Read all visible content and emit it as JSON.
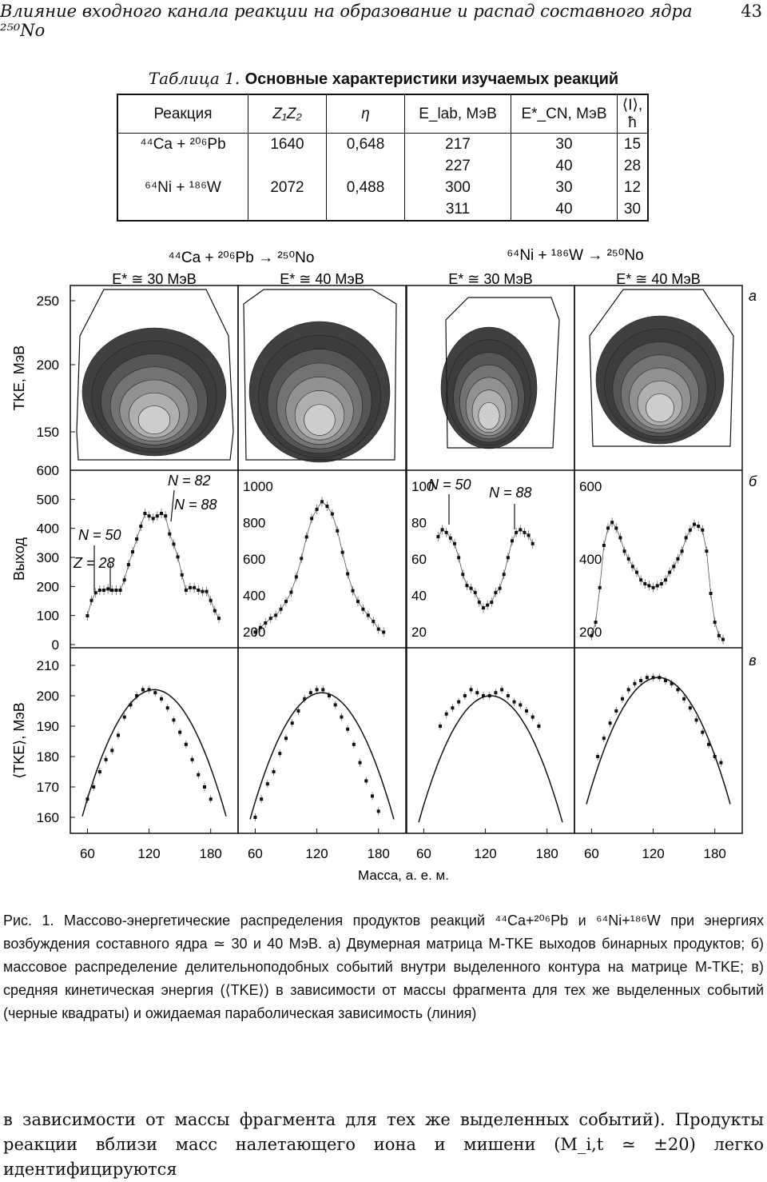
{
  "header": {
    "running_title": "Влияние входного канала реакции на образование и распад составного ядра ²⁵⁰No",
    "page_number": "43"
  },
  "table": {
    "label": "Таблица 1.",
    "title": "Основные характеристики изучаемых реакций",
    "columns": [
      "Реакция",
      "Z₁Z₂",
      "η",
      "E_lab, МэВ",
      "E*_CN, МэВ",
      "⟨I⟩, ħ"
    ],
    "rows": [
      {
        "reaction": "⁴⁴Ca + ²⁰⁶Pb",
        "z1z2": "1640",
        "eta": "0,648",
        "elab": [
          "217",
          "227"
        ],
        "ecn": [
          "30",
          "40"
        ],
        "i": [
          "15",
          "28"
        ]
      },
      {
        "reaction": "⁶⁴Ni + ¹⁸⁶W",
        "z1z2": "2072",
        "eta": "0,488",
        "elab": [
          "300",
          "311"
        ],
        "ecn": [
          "30",
          "40"
        ],
        "i": [
          "12",
          "30"
        ]
      }
    ]
  },
  "figure": {
    "reaction_titles": [
      "⁴⁴Ca + ²⁰⁶Pb → ²⁵⁰No",
      "⁶⁴Ni + ¹⁸⁶W → ²⁵⁰No"
    ],
    "energy_labels": [
      "E* ≅ 30 МэВ",
      "E* ≅ 40 МэВ",
      "E* ≅ 30 МэВ",
      "E* ≅ 40 МэВ"
    ],
    "row_letters": [
      "а",
      "б",
      "в"
    ],
    "ylabels": [
      "TKE, МэВ",
      "Выход",
      "⟨TKE⟩, МэВ"
    ],
    "xlabel": "Масса, а. е. м.",
    "xticks": [
      "60",
      "120",
      "180"
    ],
    "row_a_yticks": [
      "250",
      "200",
      "150"
    ],
    "row_b_yticks_left": [
      "600",
      "500",
      "400",
      "300",
      "200",
      "100",
      "0"
    ],
    "row_b_panel_ticks": [
      [],
      [
        "1000",
        "800",
        "600",
        "400",
        "200"
      ],
      [
        "100",
        "80",
        "60",
        "40",
        "20"
      ],
      [
        "600",
        "400",
        "200"
      ]
    ],
    "row_c_yticks": [
      "210",
      "200",
      "190",
      "180",
      "170",
      "160"
    ],
    "annotations": [
      {
        "panel": 0,
        "text": "N = 82"
      },
      {
        "panel": 0,
        "text": "N = 88"
      },
      {
        "panel": 0,
        "text": "N = 50"
      },
      {
        "panel": 0,
        "text": "Z = 28"
      },
      {
        "panel": 2,
        "text": "N = 50"
      },
      {
        "panel": 2,
        "text": "N = 88"
      }
    ]
  },
  "chart_data": [
    {
      "type": "scatter",
      "title": "⁴⁴Ca + ²⁰⁶Pb, E* ≅ 30 МэВ — выход",
      "xlabel": "Масса, а. е. м.",
      "ylabel": "Выход",
      "xlim": [
        50,
        198
      ],
      "ylim": [
        0,
        600
      ],
      "x": [
        60,
        64,
        68,
        72,
        76,
        80,
        84,
        88,
        92,
        96,
        100,
        104,
        108,
        112,
        116,
        120,
        124,
        128,
        132,
        136,
        140,
        144,
        148,
        152,
        156,
        160,
        164,
        168,
        172,
        176,
        180,
        184,
        188
      ],
      "y": [
        100,
        160,
        190,
        200,
        200,
        205,
        200,
        200,
        200,
        240,
        300,
        350,
        400,
        450,
        500,
        490,
        480,
        490,
        500,
        490,
        420,
        380,
        330,
        260,
        200,
        210,
        210,
        200,
        195,
        195,
        160,
        120,
        90
      ]
    },
    {
      "type": "scatter",
      "title": "⁴⁴Ca + ²⁰⁶Pb, E* ≅ 40 МэВ — выход",
      "xlabel": "Масса, а. е. м.",
      "ylabel": "Выход",
      "xlim": [
        50,
        198
      ],
      "ylim": [
        0,
        1000
      ],
      "x": [
        60,
        65,
        70,
        75,
        80,
        85,
        90,
        95,
        100,
        105,
        110,
        115,
        120,
        125,
        130,
        135,
        140,
        145,
        150,
        155,
        160,
        165,
        170,
        175,
        180,
        185
      ],
      "y": [
        60,
        90,
        120,
        150,
        170,
        210,
        260,
        320,
        420,
        540,
        680,
        800,
        860,
        910,
        880,
        830,
        720,
        580,
        440,
        330,
        260,
        210,
        170,
        130,
        80,
        60
      ]
    },
    {
      "type": "scatter",
      "title": "⁶⁴Ni + ¹⁸⁶W, E* ≅ 30 МэВ — выход",
      "xlabel": "Масса, а. е. м.",
      "ylabel": "Выход",
      "xlim": [
        50,
        198
      ],
      "ylim": [
        0,
        110
      ],
      "x": [
        74,
        78,
        82,
        86,
        90,
        94,
        98,
        102,
        106,
        110,
        114,
        118,
        122,
        126,
        130,
        134,
        138,
        142,
        146,
        150,
        154,
        158,
        162,
        166
      ],
      "y": [
        75,
        80,
        78,
        74,
        70,
        60,
        48,
        40,
        38,
        35,
        28,
        24,
        26,
        28,
        35,
        38,
        48,
        60,
        72,
        78,
        80,
        78,
        76,
        70
      ]
    },
    {
      "type": "scatter",
      "title": "⁶⁴Ni + ¹⁸⁶W, E* ≅ 40 МэВ — выход",
      "xlabel": "Масса, а. е. м.",
      "ylabel": "Выход",
      "xlim": [
        50,
        198
      ],
      "ylim": [
        0,
        800
      ],
      "x": [
        60,
        64,
        68,
        72,
        76,
        80,
        84,
        88,
        92,
        96,
        100,
        104,
        108,
        112,
        116,
        120,
        124,
        128,
        132,
        136,
        140,
        144,
        148,
        152,
        156,
        160,
        164,
        168,
        172,
        176,
        180,
        184,
        188
      ],
      "y": [
        30,
        100,
        280,
        500,
        590,
        620,
        590,
        540,
        470,
        430,
        390,
        360,
        320,
        300,
        290,
        280,
        290,
        300,
        320,
        360,
        390,
        430,
        470,
        540,
        580,
        610,
        600,
        580,
        470,
        250,
        100,
        30,
        10
      ]
    },
    {
      "type": "scatter",
      "title": "⁴⁴Ca + ²⁰⁶Pb, E* ≅ 30 МэВ — ⟨TKE⟩",
      "xlabel": "Масса, а. е. м.",
      "ylabel": "⟨TKE⟩, МэВ",
      "xlim": [
        50,
        198
      ],
      "ylim": [
        155,
        213
      ],
      "x": [
        60,
        66,
        72,
        78,
        84,
        90,
        96,
        102,
        108,
        114,
        120,
        126,
        132,
        138,
        144,
        150,
        156,
        162,
        168,
        174,
        180
      ],
      "y": [
        166,
        170,
        175,
        179,
        182,
        187,
        193,
        197,
        200,
        202,
        202,
        201,
        199,
        196,
        192,
        188,
        184,
        179,
        174,
        170,
        166
      ],
      "parabola": {
        "vertex_x": 125,
        "vertex_y": 202
      }
    },
    {
      "type": "scatter",
      "title": "⁴⁴Ca + ²⁰⁶Pb, E* ≅ 40 МэВ — ⟨TKE⟩",
      "xlabel": "Масса, а. е. м.",
      "ylabel": "⟨TKE⟩, МэВ",
      "xlim": [
        50,
        198
      ],
      "ylim": [
        155,
        213
      ],
      "x": [
        60,
        66,
        72,
        78,
        84,
        90,
        96,
        102,
        108,
        114,
        120,
        126,
        132,
        138,
        144,
        150,
        156,
        162,
        168,
        174,
        180
      ],
      "y": [
        160,
        166,
        171,
        175,
        181,
        186,
        191,
        195,
        199,
        201,
        202,
        202,
        200,
        197,
        193,
        189,
        184,
        178,
        172,
        167,
        162
      ],
      "parabola": {
        "vertex_x": 125,
        "vertex_y": 201
      }
    },
    {
      "type": "scatter",
      "title": "⁶⁴Ni + ¹⁸⁶W, E* ≅ 30 МэВ — ⟨TKE⟩",
      "xlabel": "Масса, а. е. м.",
      "ylabel": "⟨TKE⟩, МэВ",
      "xlim": [
        50,
        198
      ],
      "ylim": [
        155,
        213
      ],
      "x": [
        76,
        82,
        88,
        94,
        100,
        106,
        112,
        118,
        124,
        130,
        136,
        142,
        148,
        154,
        160,
        166,
        172
      ],
      "y": [
        190,
        194,
        196,
        198,
        200,
        202,
        201,
        200,
        200,
        201,
        202,
        200,
        198,
        197,
        195,
        193,
        190
      ],
      "parabola": {
        "vertex_x": 125,
        "vertex_y": 200
      }
    },
    {
      "type": "scatter",
      "title": "⁶⁴Ni + ¹⁸⁶W, E* ≅ 40 МэВ — ⟨TKE⟩",
      "xlabel": "Масса, а. е. м.",
      "ylabel": "⟨TKE⟩, МэВ",
      "xlim": [
        50,
        198
      ],
      "ylim": [
        155,
        213
      ],
      "x": [
        66,
        72,
        78,
        84,
        90,
        96,
        102,
        108,
        114,
        120,
        126,
        132,
        138,
        144,
        150,
        156,
        162,
        168,
        174,
        180,
        186
      ],
      "y": [
        180,
        186,
        191,
        195,
        199,
        202,
        204,
        205,
        206,
        206,
        206,
        205,
        204,
        202,
        199,
        196,
        192,
        188,
        184,
        180,
        178
      ],
      "parabola": {
        "vertex_x": 125,
        "vertex_y": 206
      }
    }
  ],
  "caption": {
    "text": "Рис. 1. Массово-энергетические распределения продуктов реакций ⁴⁴Ca+²⁰⁶Pb и ⁶⁴Ni+¹⁸⁶W при энергиях возбуждения составного ядра ≃ 30 и 40 МэВ. а) Двумерная матрица M-TKE выходов бинарных продуктов; б) массовое распределение делительноподобных событий внутри выделенного контура на матрице M-TKE; в) средняя кинетическая энергия (⟨TKE⟩) в зависимости от массы фрагмента для тех же выделенных событий (черные квадраты) и ожидаемая параболическая зависимость (линия)"
  },
  "body_text": "в зависимости от массы фрагмента для тех же выделенных событий). Продукты реакции вблизи масс налетающего иона и мишени (M_i,t ≃ ±20) легко идентифицируются"
}
